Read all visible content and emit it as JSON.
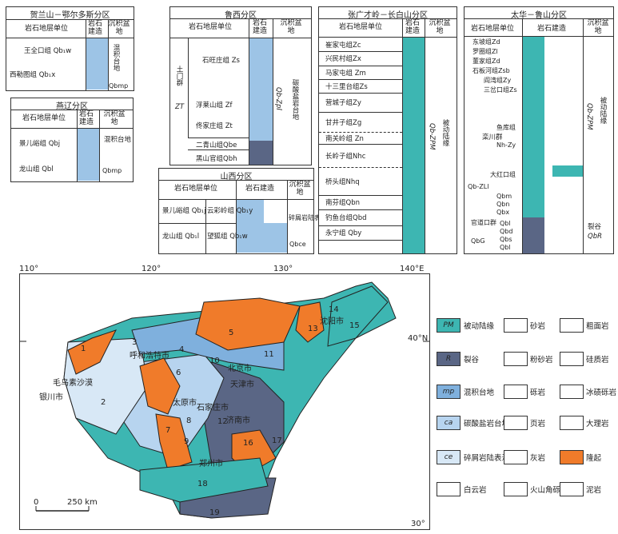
{
  "panels": {
    "helan": {
      "title": "贺兰山－鄂尔多斯分区",
      "h1": "岩石地层单位",
      "h2": "岩石建造",
      "h3": "沉积盆地",
      "units": [
        "王全口组 Qb₁w",
        "西勒图组 Qb₁x"
      ],
      "basin": "混积台地",
      "basin_code": "Qbmp"
    },
    "yanliao": {
      "title": "燕辽分区",
      "h1": "岩石地层单位",
      "h2": "岩石建造",
      "h3": "沉积盆地",
      "units": [
        "景儿峪组 Qbj",
        "龙山组 Qbl"
      ],
      "basin": "混积台地",
      "basin_code": "Qbmp"
    },
    "luxi": {
      "title": "鲁西分区",
      "h1": "岩石地层单位",
      "h2": "岩石建造",
      "h3": "沉积盆地",
      "group": "土门群",
      "group_code": "ZT",
      "units": [
        "石旺庄组 Zs",
        "浮莱山组 Zf",
        "佟家庄组 Zt",
        "二青山组Qbe",
        "黑山官组Qbh"
      ],
      "code": "Qb-Zpl",
      "basin": "碳酸盐岩台地"
    },
    "shanxi": {
      "title": "山西分区",
      "h1": "岩石地层单位",
      "h2": "岩石建造",
      "h3": "沉积盆地",
      "units": [
        "景儿峪组 Qb₁j",
        "龙山组 Qb₁l"
      ],
      "units2": [
        "云彩岭组 Qb₁y",
        "望狐组 Qb₁w"
      ],
      "basin": "碎屑岩陆表海",
      "basin_code": "Qbce"
    },
    "zhangguang": {
      "title": "张广才岭－长白山分区",
      "h1": "岩石地层单位",
      "h2": "岩石建造",
      "h3": "沉积盆地",
      "units": [
        "崔家屯组Zc",
        "兴民村组Zx",
        "马家屯组 Zm",
        "十三里台组Zs",
        "营城子组Zy",
        "甘井子组Zg",
        "南关岭组 Zn",
        "长岭子组Nhc",
        "桥头组Nhq",
        "南芬组Qbn",
        "钓鱼台组Qbd",
        "永宁组 Qby"
      ],
      "code": "Qb-ZPM",
      "basin": "被动陆缘"
    },
    "taihua": {
      "title": "太华－鲁山分区",
      "h1": "岩石地层单位",
      "h2": "岩石建造",
      "h3": "沉积盆地",
      "units": [
        "东坡组Zd",
        "罗圈组Zl",
        "董家组Zd",
        "石板河组Zsb",
        "阎湾组Zy",
        "三岔口组Zs",
        "鱼库组",
        "大红口组",
        "Qbm",
        "Qbn",
        "Qbx"
      ],
      "group1": "栾川群",
      "group1_code": "Nh-Zy",
      "group2": "Qb-ZLl",
      "group3": "官道口群",
      "group3_code": "QbG",
      "lower": [
        "Qbl",
        "Qbd",
        "Qbs",
        "Qbl"
      ],
      "code": "Qb-ZPM",
      "basin": "被动陆缘",
      "rift": "裂谷",
      "rift_code": "QbR"
    }
  },
  "map": {
    "lon_labels": [
      "110°",
      "120°",
      "130°",
      "140°E"
    ],
    "lat_labels": [
      "40°N",
      "30°"
    ],
    "places": [
      "毛乌素沙漠",
      "银川市",
      "呼和浩特市",
      "北京市",
      "天津市",
      "石家庄市",
      "太原市",
      "济南市",
      "郑州市",
      "沈阳市"
    ],
    "region_numbers": [
      "1",
      "2",
      "3",
      "4",
      "5",
      "6",
      "7",
      "8",
      "9",
      "10",
      "11",
      "12",
      "13",
      "14",
      "15",
      "16",
      "17",
      "18",
      "19"
    ],
    "scale_start": "0",
    "scale_label": "250 km"
  },
  "legend": [
    {
      "code": "PM",
      "label": "被动陆缘",
      "color": "#3db6b2"
    },
    {
      "code": "R",
      "label": "裂谷",
      "color": "#5a6685"
    },
    {
      "code": "mp",
      "label": "混积台地",
      "color": "#7fb0dd"
    },
    {
      "code": "ca",
      "label": "碳酸盐岩台地",
      "color": "#b7d4ef"
    },
    {
      "code": "ce",
      "label": "碎屑岩陆表海",
      "color": "#d8e8f6"
    },
    {
      "code": "",
      "label": "白云岩",
      "color": "#ffffff"
    }
  ],
  "legend2": [
    "砂岩",
    "粉砂岩",
    "砾岩",
    "页岩",
    "灰岩",
    "火山角砾岩"
  ],
  "legend3": [
    "粗面岩",
    "硅质岩",
    "冰碛砾岩",
    "大理岩",
    "隆起",
    "泥岩"
  ],
  "colors": {
    "teal": "#3db6b2",
    "dark": "#5a6685",
    "blue": "#7fb0dd",
    "light": "#b7d4ef",
    "orange": "#f07b2a"
  }
}
